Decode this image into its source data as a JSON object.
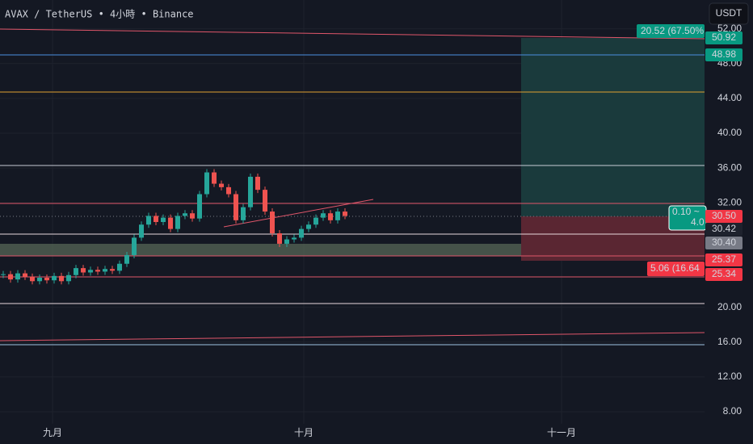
{
  "header": {
    "title": "AVAX / TetherUS • 4小時 • Binance",
    "currency": "USDT"
  },
  "price_axis": {
    "ticks": [
      {
        "value": 52,
        "label": "52.00"
      },
      {
        "value": 48,
        "label": "48.00"
      },
      {
        "value": 44,
        "label": "44.00"
      },
      {
        "value": 40,
        "label": "40.00"
      },
      {
        "value": 36,
        "label": "36.00"
      },
      {
        "value": 32,
        "label": "32.00"
      },
      {
        "value": 20,
        "label": "20.00"
      },
      {
        "value": 16,
        "label": "16.00"
      },
      {
        "value": 12,
        "label": "12.00"
      },
      {
        "value": 8,
        "label": "8.00"
      }
    ]
  },
  "time_axis": {
    "labels": [
      "九月",
      "十月",
      "十一月"
    ]
  },
  "price_badges": [
    "50.92",
    "48.98",
    "30.50",
    "30.42",
    "30.40",
    "25.37",
    "25.34"
  ],
  "position_labels": {
    "target": "20.52 (67.50%",
    "entry_1": "0.10 ~",
    "entry_2": "4.0",
    "stop": "5.06 (16.64"
  },
  "price_path": [
    23.8,
    23.2,
    23.9,
    23.5,
    23.0,
    23.4,
    23.1,
    23.6,
    23.0,
    23.7,
    24.5,
    24.0,
    24.3,
    24.1,
    24.4,
    24.2,
    25.0,
    26.0,
    28.0,
    29.5,
    30.5,
    29.8,
    30.3,
    29.0,
    30.5,
    30.8,
    30.2,
    33.0,
    35.5,
    34.2,
    33.8,
    33.0,
    30.0,
    31.5,
    35.0,
    33.5,
    31.0,
    28.5,
    27.3,
    27.8,
    28.0,
    29.0,
    29.5,
    30.3,
    30.8,
    30.0,
    31.0,
    30.5
  ]
}
